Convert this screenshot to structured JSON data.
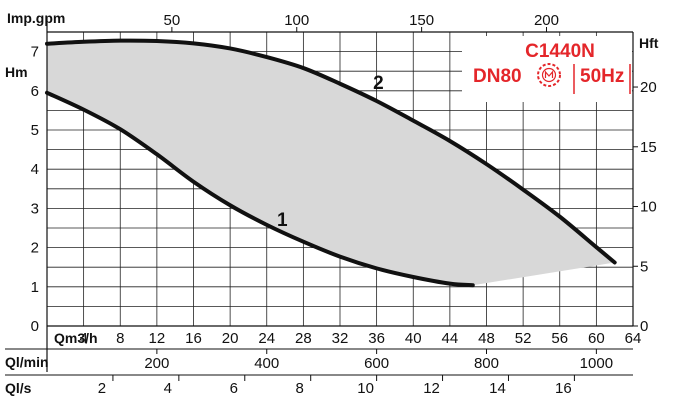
{
  "chart_data": {
    "type": "line",
    "model": "C1440N",
    "connection": "DN80",
    "frequency": "50Hz",
    "colors": {
      "curve": "#111111",
      "band": "#d8d8d8",
      "badge": "#e4262a",
      "grid": "#222222"
    },
    "axes": {
      "flow_m3h": {
        "label": "Qm3/h",
        "range": [
          0,
          64
        ],
        "ticks": [
          0,
          4,
          8,
          12,
          16,
          20,
          24,
          28,
          32,
          36,
          40,
          44,
          48,
          52,
          56,
          60,
          64
        ]
      },
      "flow_impgpm": {
        "label": "Imp.gpm",
        "ticks": [
          50,
          100,
          150,
          200
        ]
      },
      "flow_lmin": {
        "label": "Ql/min",
        "ticks": [
          200,
          400,
          600,
          800,
          1000
        ]
      },
      "flow_ls": {
        "label": "Ql/s",
        "ticks": [
          2,
          4,
          6,
          8,
          10,
          12,
          14,
          16
        ]
      },
      "head_m": {
        "label": "Hm",
        "range": [
          0,
          7.5
        ],
        "ticks": [
          0,
          1,
          2,
          3,
          4,
          5,
          6,
          7
        ]
      },
      "head_ft": {
        "label": "Hft",
        "ticks": [
          0,
          5,
          10,
          15,
          20
        ]
      }
    },
    "series": [
      {
        "name": "1",
        "x": [
          0,
          4,
          8,
          12,
          16,
          20,
          24,
          28,
          32,
          36,
          40,
          44,
          46.5
        ],
        "y": [
          5.95,
          5.52,
          5.02,
          4.38,
          3.68,
          3.08,
          2.58,
          2.15,
          1.77,
          1.47,
          1.25,
          1.08,
          1.04
        ]
      },
      {
        "name": "2",
        "x": [
          0,
          4,
          8,
          12,
          16,
          20,
          24,
          28,
          32,
          36,
          40,
          44,
          48,
          52,
          56,
          60,
          62
        ],
        "y": [
          7.2,
          7.25,
          7.28,
          7.27,
          7.21,
          7.08,
          6.86,
          6.58,
          6.18,
          5.74,
          5.24,
          4.72,
          4.13,
          3.48,
          2.79,
          2.01,
          1.62
        ]
      }
    ],
    "grid": true
  }
}
